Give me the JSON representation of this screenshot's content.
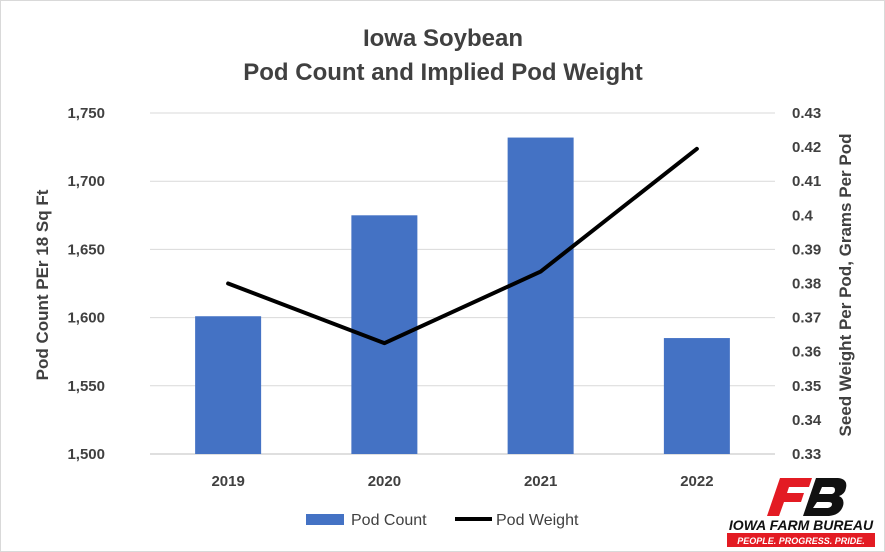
{
  "chart_data": {
    "type": "bar",
    "title_line1": "Iowa Soybean",
    "title_line2": "Pod Count and Implied Pod Weight",
    "categories": [
      "2019",
      "2020",
      "2021",
      "2022"
    ],
    "series": [
      {
        "name": "Pod Count",
        "type": "bar",
        "axis": "left",
        "color": "#4472C4",
        "values": [
          1601,
          1675,
          1732,
          1585
        ]
      },
      {
        "name": "Pod Weight",
        "type": "line",
        "axis": "right",
        "color": "#000000",
        "values": [
          0.38,
          0.3625,
          0.3835,
          0.4195
        ]
      }
    ],
    "y_left": {
      "label": "Pod Count PEr 18 Sq Ft",
      "min": 1500,
      "max": 1750,
      "ticks": [
        "1,500",
        "1,550",
        "1,600",
        "1,650",
        "1,700",
        "1,750"
      ]
    },
    "y_right": {
      "label": "Seed Weight Per Pod, Grams Per Pod",
      "min": 0.33,
      "max": 0.43,
      "ticks": [
        "0.33",
        "0.34",
        "0.35",
        "0.36",
        "0.37",
        "0.38",
        "0.39",
        "0.4",
        "0.41",
        "0.42",
        "0.43"
      ]
    },
    "grid": true,
    "legend_position": "bottom"
  },
  "logo": {
    "name": "IOWA FARM BUREAU",
    "tagline": "PEOPLE. PROGRESS. PRIDE.",
    "colors": {
      "red": "#E31B23",
      "black": "#111111"
    }
  }
}
